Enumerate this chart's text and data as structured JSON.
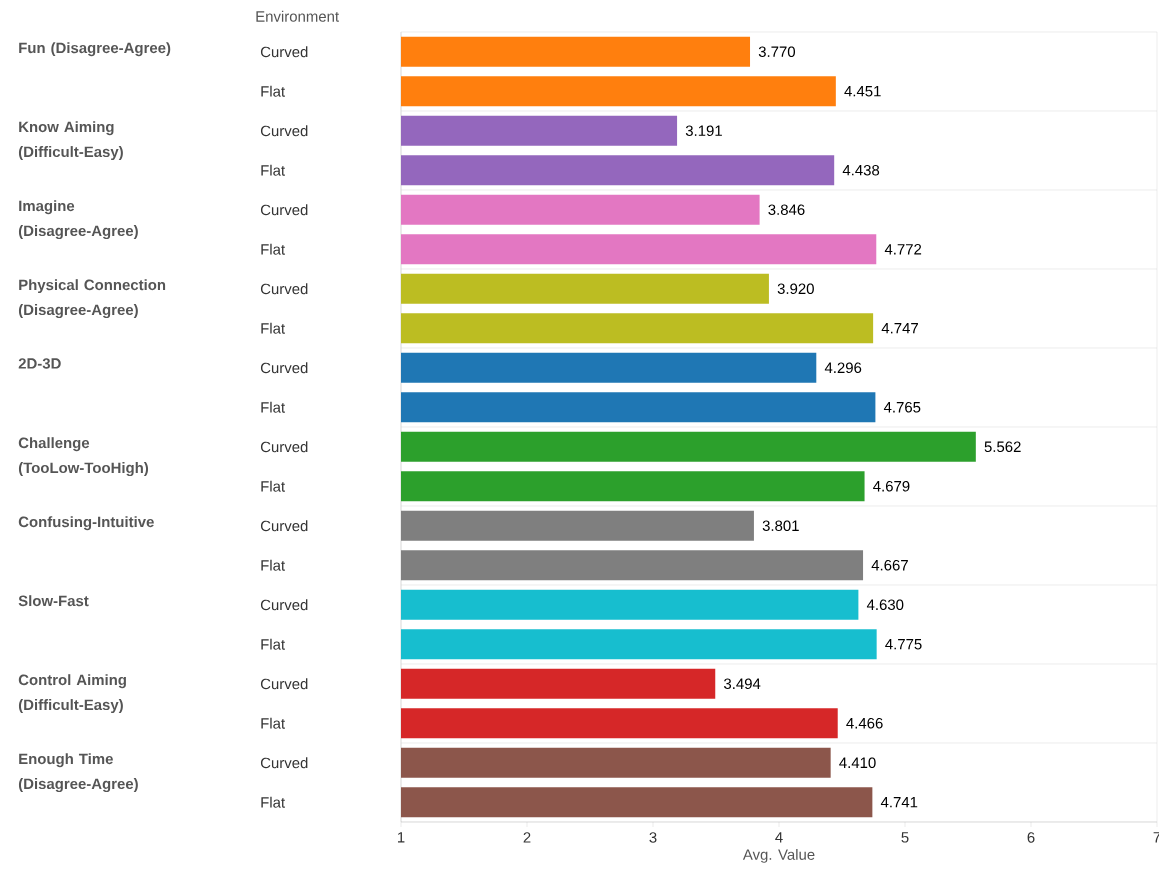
{
  "chart_data": [
    {
      "type": "bar",
      "orientation": "horizontal",
      "title": "Environment",
      "ylabel": "Fun (Disagree-Agree)",
      "categories": [
        "Curved",
        "Flat"
      ],
      "values": [
        3.77,
        4.451
      ],
      "value_labels": [
        "3.770",
        "4.451"
      ],
      "color": "#ff7f0e",
      "xlim": [
        1,
        7
      ],
      "xticks": [
        1,
        2,
        3,
        4,
        5,
        6,
        7
      ],
      "tick_labels": "y"
    },
    {
      "type": "bar",
      "orientation": "horizontal",
      "ylabel": "Know Aiming (Difficult-Easy)",
      "categories": [
        "Curved",
        "Flat"
      ],
      "values": [
        3.191,
        4.438
      ],
      "value_labels": [
        "3.191",
        "4.438"
      ],
      "color": "#9467bd",
      "xlim": [
        1,
        7
      ],
      "xticks": [
        1,
        2,
        3,
        4,
        5,
        6,
        7
      ],
      "tick_labels": "y"
    },
    {
      "type": "bar",
      "orientation": "horizontal",
      "ylabel": "Imagine (Disagree-Agree)",
      "categories": [
        "Curved",
        "Flat"
      ],
      "values": [
        3.846,
        4.772
      ],
      "value_labels": [
        "3.846",
        "4.772"
      ],
      "color": "#e377c2",
      "xlim": [
        1,
        7
      ],
      "xticks": [
        1,
        2,
        3,
        4,
        5,
        6,
        7
      ],
      "tick_labels": "y"
    },
    {
      "type": "bar",
      "orientation": "horizontal",
      "ylabel": "Physical Connection (Disagree-Agree)",
      "categories": [
        "Curved",
        "Flat"
      ],
      "values": [
        3.92,
        4.747
      ],
      "value_labels": [
        "3.920",
        "4.747"
      ],
      "color": "#bcbd22",
      "xlim": [
        1,
        7
      ],
      "xticks": [
        1,
        2,
        3,
        4,
        5,
        6,
        7
      ],
      "tick_labels": "y"
    },
    {
      "type": "bar",
      "orientation": "horizontal",
      "ylabel": "2D-3D",
      "categories": [
        "Curved",
        "Flat"
      ],
      "values": [
        4.296,
        4.765
      ],
      "value_labels": [
        "4.296",
        "4.765"
      ],
      "color": "#1f77b4",
      "xlim": [
        1,
        7
      ],
      "xticks": [
        1,
        2,
        3,
        4,
        5,
        6,
        7
      ],
      "tick_labels": "y"
    },
    {
      "type": "bar",
      "orientation": "horizontal",
      "ylabel": "Challenge (TooLow-TooHigh)",
      "categories": [
        "Curved",
        "Flat"
      ],
      "values": [
        5.562,
        4.679
      ],
      "value_labels": [
        "5.562",
        "4.679"
      ],
      "color": "#2ca02c",
      "xlim": [
        1,
        7
      ],
      "xticks": [
        1,
        2,
        3,
        4,
        5,
        6,
        7
      ],
      "tick_labels": "y"
    },
    {
      "type": "bar",
      "orientation": "horizontal",
      "ylabel": "Confusing-Intuitive",
      "categories": [
        "Curved",
        "Flat"
      ],
      "values": [
        3.801,
        4.667
      ],
      "value_labels": [
        "3.801",
        "4.667"
      ],
      "color": "#7f7f7f",
      "xlim": [
        1,
        7
      ],
      "xticks": [
        1,
        2,
        3,
        4,
        5,
        6,
        7
      ],
      "tick_labels": "y"
    },
    {
      "type": "bar",
      "orientation": "horizontal",
      "ylabel": "Slow-Fast",
      "categories": [
        "Curved",
        "Flat"
      ],
      "values": [
        4.63,
        4.775
      ],
      "value_labels": [
        "4.630",
        "4.775"
      ],
      "color": "#17becf",
      "xlim": [
        1,
        7
      ],
      "xticks": [
        1,
        2,
        3,
        4,
        5,
        6,
        7
      ],
      "tick_labels": "y"
    },
    {
      "type": "bar",
      "orientation": "horizontal",
      "ylabel": "Control Aiming (Difficult-Easy)",
      "categories": [
        "Curved",
        "Flat"
      ],
      "values": [
        3.494,
        4.466
      ],
      "value_labels": [
        "3.494",
        "4.466"
      ],
      "color": "#d62728",
      "xlim": [
        1,
        7
      ],
      "xticks": [
        1,
        2,
        3,
        4,
        5,
        6,
        7
      ],
      "tick_labels": "y"
    },
    {
      "type": "bar",
      "orientation": "horizontal",
      "ylabel": "Enough Time (Disagree-Agree)",
      "xlabel": "Avg. Value",
      "categories": [
        "Curved",
        "Flat"
      ],
      "values": [
        4.41,
        4.741
      ],
      "value_labels": [
        "4.410",
        "4.741"
      ],
      "color": "#8c564b",
      "xlim": [
        1,
        7
      ],
      "xticks": [
        1,
        2,
        3,
        4,
        5,
        6,
        7
      ]
    }
  ]
}
